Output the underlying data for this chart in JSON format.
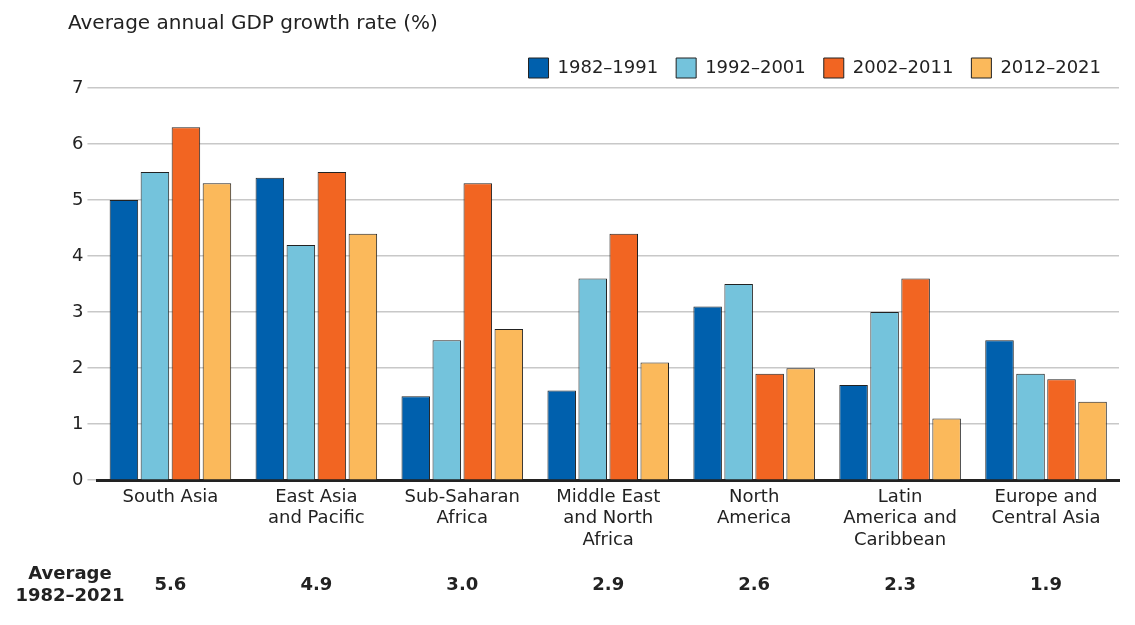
{
  "chart_data": {
    "type": "bar",
    "title": "Average annual GDP growth rate (%)",
    "categories": [
      "South Asia",
      "East Asia and Pacific",
      "Sub-Saharan Africa",
      "Middle East and North Africa",
      "North America",
      "Latin America and Caribbean",
      "Europe and Central Asia"
    ],
    "series": [
      {
        "name": "1982–1991",
        "color": "#0060ad",
        "values": [
          5.0,
          5.4,
          1.5,
          1.6,
          3.1,
          1.7,
          2.5
        ]
      },
      {
        "name": "1992–2001",
        "color": "#74c3dc",
        "values": [
          5.5,
          4.2,
          2.5,
          3.6,
          3.5,
          3.0,
          1.9
        ]
      },
      {
        "name": "2002–2011",
        "color": "#f26522",
        "values": [
          6.3,
          5.5,
          5.3,
          4.4,
          1.9,
          3.6,
          1.8
        ]
      },
      {
        "name": "2012–2021",
        "color": "#fbb95b",
        "values": [
          5.3,
          4.4,
          2.7,
          2.1,
          2.0,
          1.1,
          1.4
        ]
      }
    ],
    "ylim": [
      0,
      7
    ],
    "yticks": [
      0,
      1,
      2,
      3,
      4,
      5,
      6,
      7
    ],
    "grid": "y",
    "legend": "top right",
    "annotations": [
      "Average 1982–2021",
      "5.6",
      "4.9",
      "3.0",
      "2.9",
      "2.6",
      "2.3",
      "1.9"
    ]
  }
}
